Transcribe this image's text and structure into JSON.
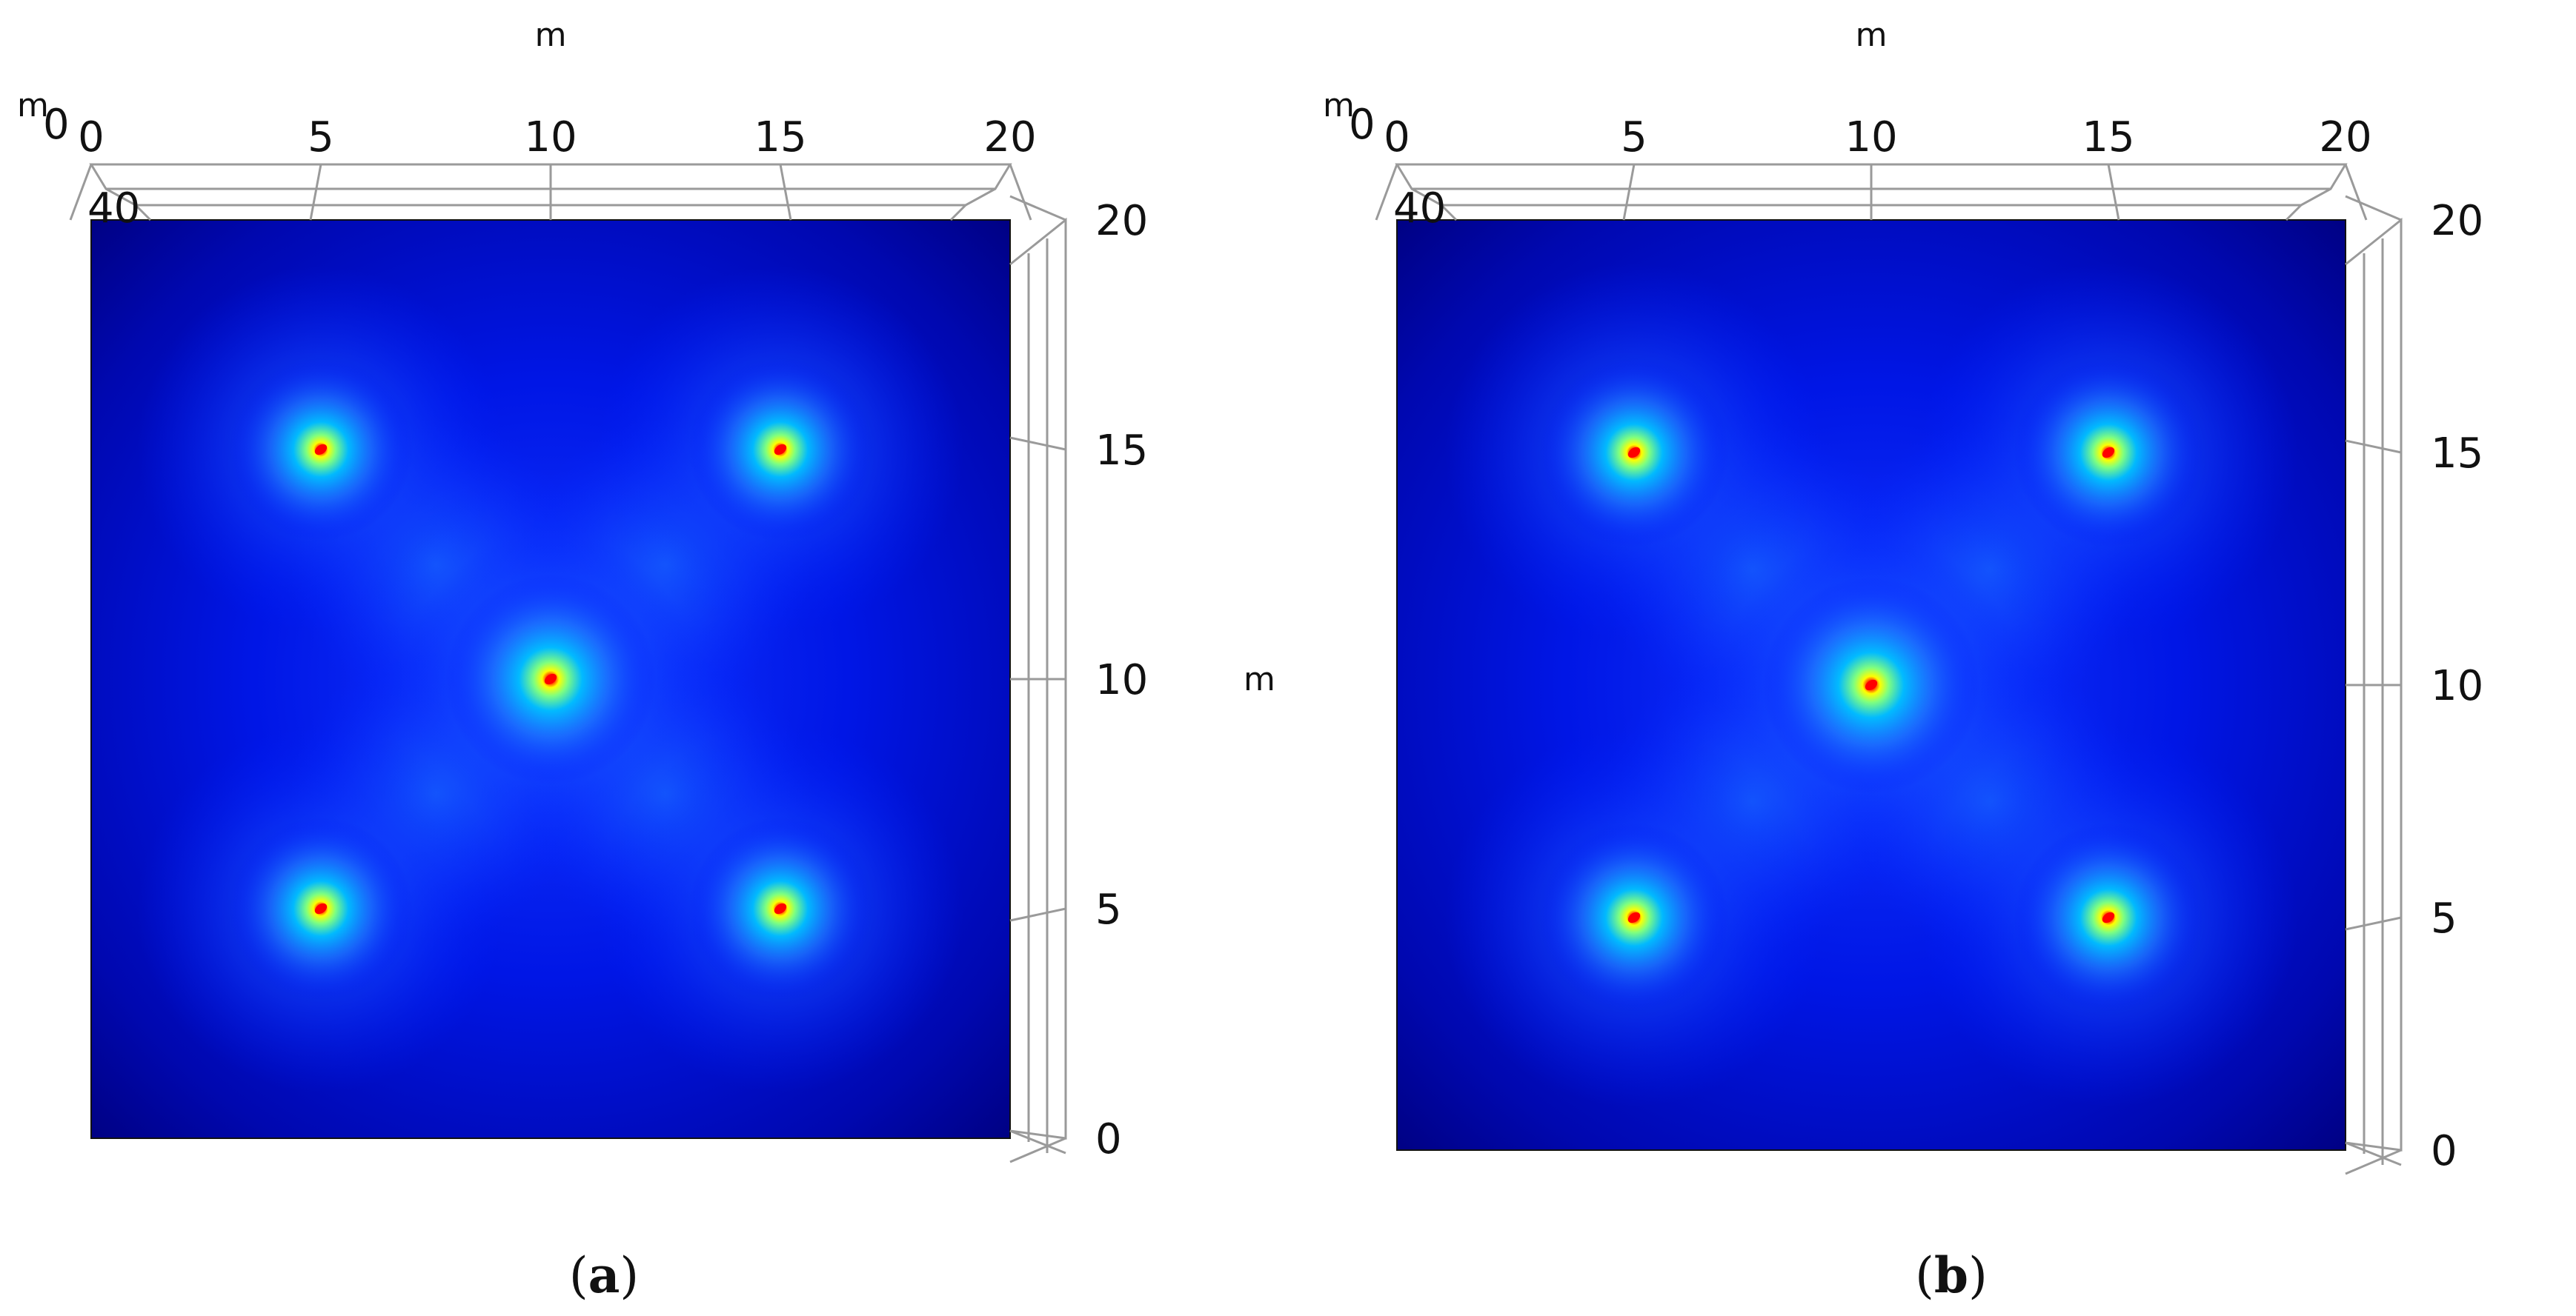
{
  "chart_data": [
    {
      "type": "heatmap",
      "caption_label": "a",
      "x_unit": "m",
      "y_unit": "m",
      "z_unit": "m",
      "x_ticks": [
        "0",
        "5",
        "10",
        "15",
        "20"
      ],
      "y_ticks": [
        "0",
        "5",
        "10",
        "15",
        "20"
      ],
      "z_ticks": [
        "0",
        "40"
      ],
      "xlim": [
        0,
        20
      ],
      "ylim": [
        0,
        20
      ],
      "colormap": [
        "#00007f",
        "#0000ff",
        "#00bfff",
        "#7fff7f",
        "#ffff00",
        "#ff0000",
        "#7f0000"
      ],
      "background_color": "#00007f",
      "sources": [
        {
          "x": 5,
          "y": 15,
          "strength": 1.0
        },
        {
          "x": 15,
          "y": 15,
          "strength": 1.0
        },
        {
          "x": 10,
          "y": 10,
          "strength": 1.15
        },
        {
          "x": 5,
          "y": 5,
          "strength": 1.0
        },
        {
          "x": 15,
          "y": 5,
          "strength": 1.0
        }
      ]
    },
    {
      "type": "heatmap",
      "caption_label": "b",
      "x_unit": "m",
      "y_unit": "m",
      "z_unit": "m",
      "x_ticks": [
        "0",
        "5",
        "10",
        "15",
        "20"
      ],
      "y_ticks": [
        "0",
        "5",
        "10",
        "15",
        "20"
      ],
      "z_ticks": [
        "0",
        "40"
      ],
      "xlim": [
        0,
        20
      ],
      "ylim": [
        0,
        20
      ],
      "colormap": [
        "#00007f",
        "#0000ff",
        "#00bfff",
        "#7fff7f",
        "#ffff00",
        "#ff0000",
        "#7f0000"
      ],
      "background_color": "#00007f",
      "sources": [
        {
          "x": 5,
          "y": 15,
          "strength": 1.0
        },
        {
          "x": 15,
          "y": 15,
          "strength": 1.0
        },
        {
          "x": 10,
          "y": 10,
          "strength": 1.15
        },
        {
          "x": 5,
          "y": 5,
          "strength": 1.0
        },
        {
          "x": 15,
          "y": 5,
          "strength": 1.0
        }
      ]
    }
  ]
}
